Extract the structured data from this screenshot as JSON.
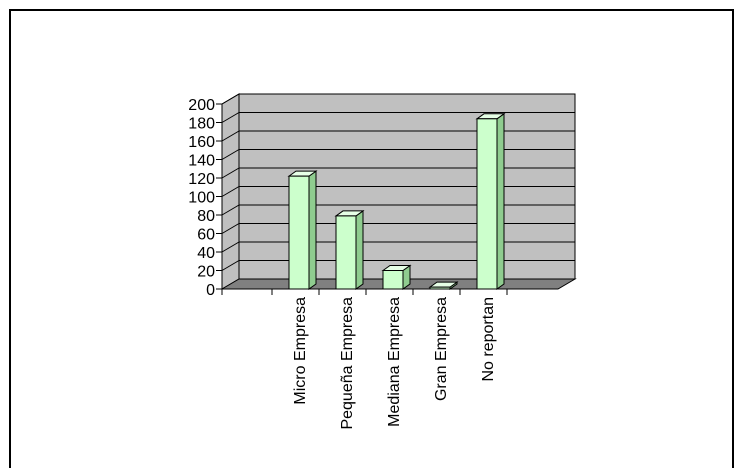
{
  "chart_data": {
    "type": "bar",
    "style": "3d-column",
    "categories": [
      "Micro Empresa",
      "Pequeña Empresa",
      "Mediana Empresa",
      "Gran Empresa",
      "No reportan"
    ],
    "values": [
      122,
      79,
      20,
      2,
      184
    ],
    "ylim": [
      0,
      200
    ],
    "yticks": [
      0,
      20,
      40,
      60,
      80,
      100,
      120,
      140,
      160,
      180,
      200
    ],
    "grid": true,
    "legend": "none",
    "title": "",
    "xlabel": "",
    "ylabel": ""
  },
  "colors": {
    "back_wall": "#c0c0c0",
    "floor": "#808080",
    "bar_front": "#ccffcc",
    "bar_side": "#8fcc8f",
    "bar_top": "#e6ffe6",
    "gridline": "#000000",
    "border": "#000000"
  }
}
